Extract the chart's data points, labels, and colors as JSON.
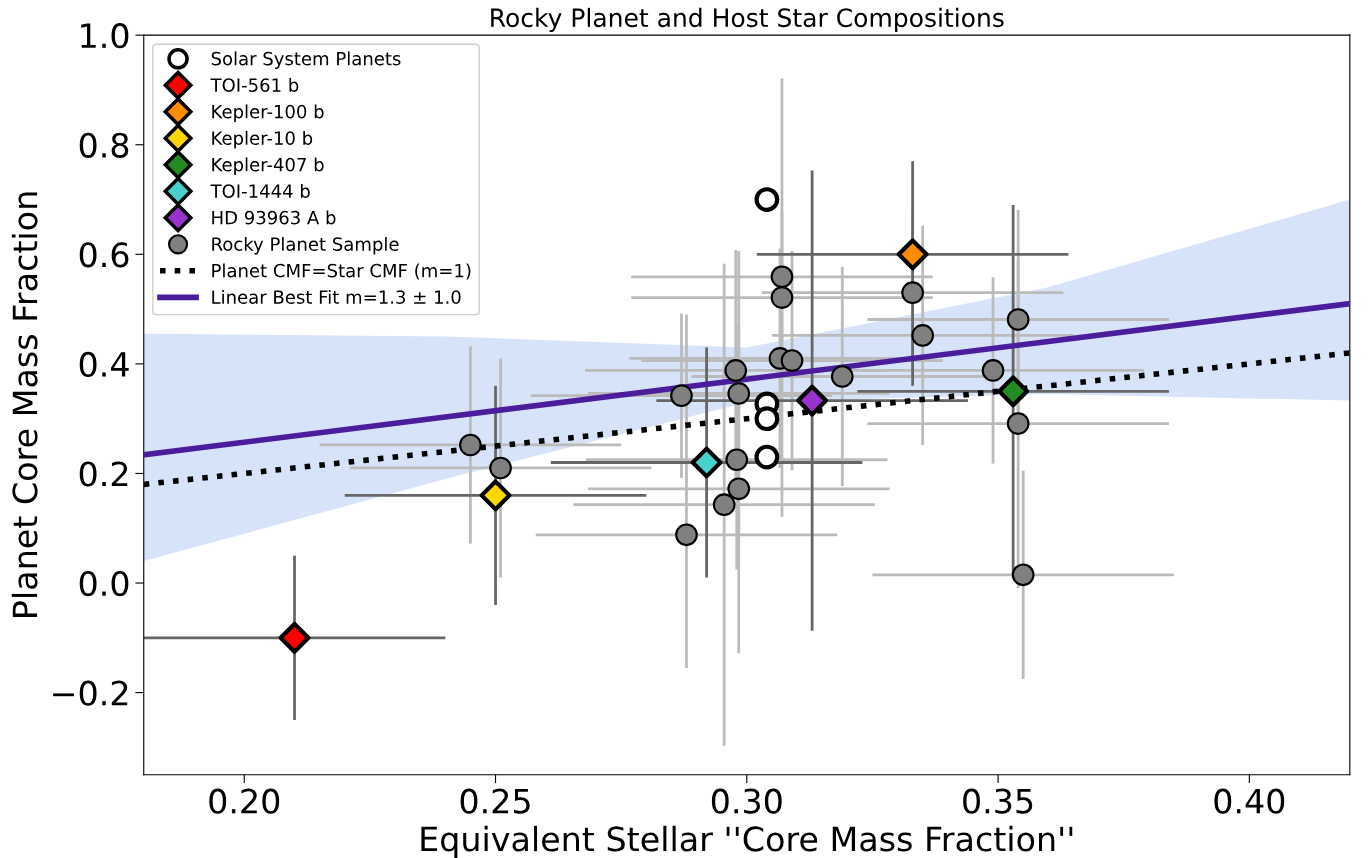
{
  "chart_data": {
    "type": "scatter",
    "title": "Rocky Planet and Host Star Compositions",
    "xlabel": "Equivalent Stellar ''Core Mass Fraction''",
    "ylabel": "Planet Core Mass Fraction",
    "xlim": [
      0.18,
      0.42
    ],
    "ylim": [
      -0.35,
      1.0
    ],
    "xticks": [
      {
        "value": 0.2,
        "label": "0.20"
      },
      {
        "value": 0.25,
        "label": "0.25"
      },
      {
        "value": 0.3,
        "label": "0.30"
      },
      {
        "value": 0.35,
        "label": "0.35"
      },
      {
        "value": 0.4,
        "label": "0.40"
      }
    ],
    "yticks": [
      {
        "value": -0.2,
        "label": "−0.2"
      },
      {
        "value": 0.0,
        "label": "0.0"
      },
      {
        "value": 0.2,
        "label": "0.2"
      },
      {
        "value": 0.4,
        "label": "0.4"
      },
      {
        "value": 0.6,
        "label": "0.6"
      },
      {
        "value": 0.8,
        "label": "0.8"
      },
      {
        "value": 1.0,
        "label": "1.0"
      }
    ],
    "grid": false,
    "legend": "top left",
    "series": [
      {
        "name": "Solar System Planets",
        "type": "scatter",
        "marker": "circle",
        "color": "#ffffff",
        "x": [
          0.304,
          0.304,
          0.304,
          0.304
        ],
        "values": [
          0.7,
          0.327,
          0.3,
          0.23
        ]
      },
      {
        "name": "TOI-561 b",
        "type": "scatter",
        "marker": "diamond",
        "color": "#ff0000",
        "x": [
          0.21
        ],
        "values": [
          -0.1
        ],
        "errors": [
          0.15
        ],
        "xerrors": [
          0.03
        ]
      },
      {
        "name": "Kepler-100 b",
        "type": "scatter",
        "marker": "diamond",
        "color": "#ff8c00",
        "x": [
          0.333
        ],
        "values": [
          0.6
        ],
        "errors": [
          [
            0.36,
            0.77
          ]
        ],
        "xerrors": [
          0.031
        ]
      },
      {
        "name": "Kepler-10 b",
        "type": "scatter",
        "marker": "diamond",
        "color": "#ffd700",
        "x": [
          0.25
        ],
        "values": [
          0.16
        ],
        "errors": [
          0.2
        ],
        "xerrors": [
          0.03
        ]
      },
      {
        "name": "Kepler-407 b",
        "type": "scatter",
        "marker": "diamond",
        "color": "#228b22",
        "x": [
          0.353
        ],
        "values": [
          0.35
        ],
        "errors": [
          0.34
        ],
        "xerrors": [
          0.031
        ]
      },
      {
        "name": "TOI-1444 b",
        "type": "scatter",
        "marker": "diamond",
        "color": "#48d1cc",
        "x": [
          0.292
        ],
        "values": [
          0.22
        ],
        "errors": [
          0.21
        ],
        "xerrors": [
          0.031
        ]
      },
      {
        "name": "HD 93963 A b",
        "type": "scatter",
        "marker": "diamond",
        "color": "#9932cc",
        "x": [
          0.313
        ],
        "values": [
          0.333
        ],
        "errors": [
          0.42
        ],
        "xerrors": [
          0.031
        ]
      },
      {
        "name": "Rocky Planet Sample",
        "type": "scatter",
        "marker": "circle",
        "color": "#808080",
        "x": [
          0.245,
          0.251,
          0.287,
          0.288,
          0.2955,
          0.2978,
          0.2984,
          0.298,
          0.2984,
          0.307,
          0.307,
          0.3066,
          0.309,
          0.319,
          0.333,
          0.335,
          0.349,
          0.354,
          0.354,
          0.355
        ],
        "values": [
          0.252,
          0.21,
          0.342,
          0.088,
          0.143,
          0.388,
          0.346,
          0.225,
          0.172,
          0.559,
          0.521,
          0.41,
          0.406,
          0.377,
          0.53,
          0.452,
          0.388,
          0.481,
          0.291,
          0.015
        ],
        "errors": [
          0.18,
          0.2,
          0.15,
          [
            -0.155,
            0.49
          ],
          0.44,
          0.22,
          0.26,
          0.2,
          0.3,
          0.12,
          0.4,
          0.2,
          0.2,
          0.2,
          0.15,
          0.2,
          0.17,
          0.2,
          0.3,
          0.19
        ],
        "xerrors": [
          0.03,
          0.03,
          0.03,
          0.03,
          0.03,
          0.03,
          0.03,
          0.03,
          0.03,
          0.03,
          0.03,
          0.03,
          0.03,
          0.03,
          0.03,
          0.03,
          0.03,
          0.03,
          0.03,
          0.03
        ]
      },
      {
        "name": "Planet CMF=Star CMF (m=1)",
        "type": "line",
        "line_style": "dotted",
        "marker": "none",
        "color": "#000000",
        "x": [
          0.18,
          0.42
        ],
        "values": [
          0.18,
          0.42
        ]
      },
      {
        "name": "Linear Best Fit m=1.3 ± 1.0",
        "type": "line",
        "line_style": "solid",
        "marker": "none",
        "color": "#4b1c9c",
        "x": [
          0.18,
          0.24,
          0.3,
          0.36,
          0.42
        ],
        "values": [
          0.234,
          0.303,
          0.372,
          0.441,
          0.51
        ],
        "lower": [
          0.04,
          0.19,
          0.33,
          0.345,
          0.333
        ],
        "upper": [
          0.455,
          0.45,
          0.43,
          0.54,
          0.7
        ]
      }
    ]
  }
}
